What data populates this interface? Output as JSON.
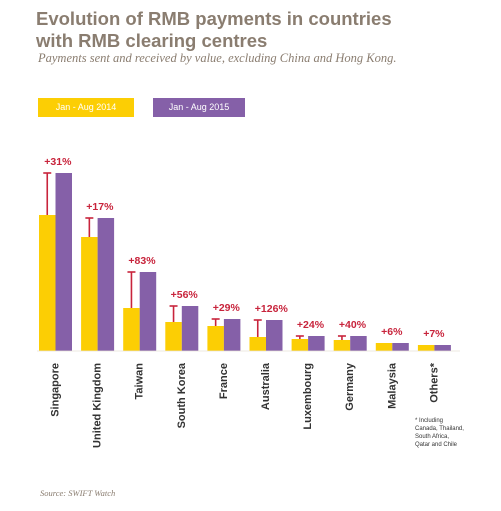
{
  "title_line1": "Evolution of RMB payments in countries",
  "title_line2": "with RMB clearing centres",
  "subtitle": "Payments sent and received by value, excluding China and Hong Kong.",
  "note_lines": [
    "* Including",
    "Canada, Thailand,",
    "South Africa,",
    "Qatar and Chile"
  ],
  "source": "Source: SWIFT Watch",
  "colors": {
    "series_2014": "#fcce04",
    "series_2015": "#8560a8",
    "growth": "#c8243c",
    "text": "#8a7d70",
    "axis": "#333333"
  },
  "chart_data": {
    "type": "bar",
    "title": "Evolution of RMB payments in countries with RMB clearing centres",
    "subtitle": "Payments sent and received by value, excluding China and Hong Kong.",
    "categories": [
      "Singapore",
      "United Kingdom",
      "Taiwan",
      "South Korea",
      "France",
      "Australia",
      "Luxembourg",
      "Germany",
      "Malaysia",
      "Others*"
    ],
    "series": [
      {
        "name": "Jan - Aug 2014",
        "values": [
          136,
          114,
          43,
          29,
          25,
          14,
          12,
          11,
          8,
          6
        ]
      },
      {
        "name": "Jan - Aug 2015",
        "values": [
          178,
          133,
          79,
          45,
          32,
          31,
          15,
          15,
          8,
          6
        ]
      }
    ],
    "growth_labels": [
      "+31%",
      "+17%",
      "+83%",
      "+56%",
      "+29%",
      "+126%",
      "+24%",
      "+40%",
      "+6%",
      "+7%"
    ],
    "ylim": [
      0,
      200
    ],
    "grid": false,
    "legend_position": "top-left",
    "xlabel": "",
    "ylabel": ""
  }
}
